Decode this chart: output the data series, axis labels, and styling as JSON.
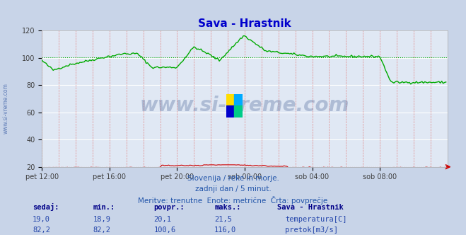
{
  "title": "Sava - Hrastnik",
  "title_color": "#0000cc",
  "bg_color": "#c8d4e8",
  "plot_bg_color": "#e0e8f4",
  "grid_h_color": "#ffffff",
  "grid_v_color": "#e08888",
  "ylim": [
    20,
    120
  ],
  "yticks": [
    20,
    40,
    60,
    80,
    100,
    120
  ],
  "num_points": 288,
  "xtick_labels": [
    "pet 12:00",
    "pet 16:00",
    "pet 20:00",
    "sob 00:00",
    "sob 04:00",
    "sob 08:00"
  ],
  "xtick_positions": [
    0,
    48,
    96,
    144,
    192,
    240
  ],
  "temp_color": "#cc0000",
  "flow_color": "#00aa00",
  "temp_avg": 20.1,
  "temp_min": 18.9,
  "temp_max": 21.5,
  "temp_now": 19.0,
  "flow_avg": 100.6,
  "flow_min": 82.2,
  "flow_max": 116.0,
  "flow_now": 82.2,
  "watermark": "www.si-vreme.com",
  "watermark_color": "#1a3a7a",
  "logo_colors": [
    "#ffdd00",
    "#00aaff",
    "#0000cc",
    "#00cc88"
  ],
  "subtitle1": "Slovenija / reke in morje.",
  "subtitle2": "zadnji dan / 5 minut.",
  "subtitle3": "Meritve: trenutne  Enote: metrične  Črta: povprečje",
  "subtitle_color": "#2255aa",
  "table_header_color": "#000088",
  "table_value_color": "#2244aa",
  "table_station": "Sava - Hrastnik",
  "table_station_color": "#000088",
  "sidebar_text": "www.si-vreme.com",
  "sidebar_color": "#4466aa"
}
